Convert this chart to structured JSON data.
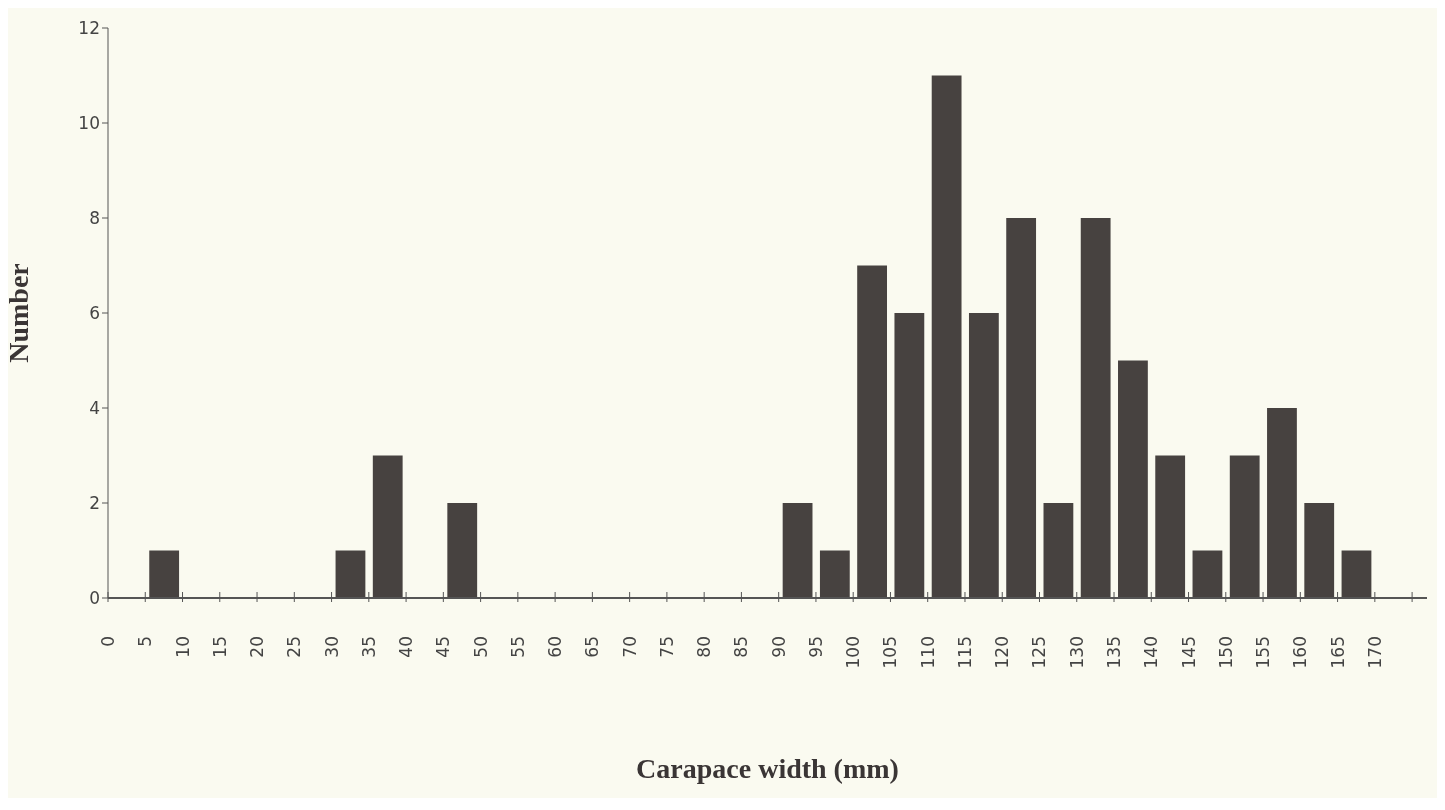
{
  "chart_data": {
    "type": "histogram",
    "xlabel": "Carapace width (mm)",
    "ylabel": "Number",
    "bins": [
      0,
      5,
      10,
      15,
      20,
      25,
      30,
      35,
      40,
      45,
      50,
      55,
      60,
      65,
      70,
      75,
      80,
      85,
      90,
      95,
      100,
      105,
      110,
      115,
      120,
      125,
      130,
      135,
      140,
      145,
      150,
      155,
      160,
      165,
      170
    ],
    "values": [
      0,
      1,
      0,
      0,
      0,
      0,
      1,
      3,
      0,
      2,
      0,
      0,
      0,
      0,
      0,
      0,
      0,
      0,
      2,
      1,
      7,
      6,
      11,
      6,
      8,
      2,
      8,
      5,
      3,
      1,
      3,
      4,
      2,
      1
    ],
    "color": "#474240",
    "xlim": [
      0,
      177
    ],
    "xticks": [
      0,
      5,
      10,
      15,
      20,
      25,
      30,
      35,
      40,
      45,
      50,
      55,
      60,
      65,
      70,
      75,
      80,
      85,
      90,
      95,
      100,
      105,
      110,
      115,
      120,
      125,
      130,
      135,
      140,
      145,
      150,
      155,
      160,
      165,
      170,
      {
        "value": 175,
        "label": null
      }
    ],
    "ylim": [
      0,
      12
    ],
    "yticks": [
      0,
      2,
      4,
      6,
      8,
      10,
      12
    ],
    "grid": false
  }
}
